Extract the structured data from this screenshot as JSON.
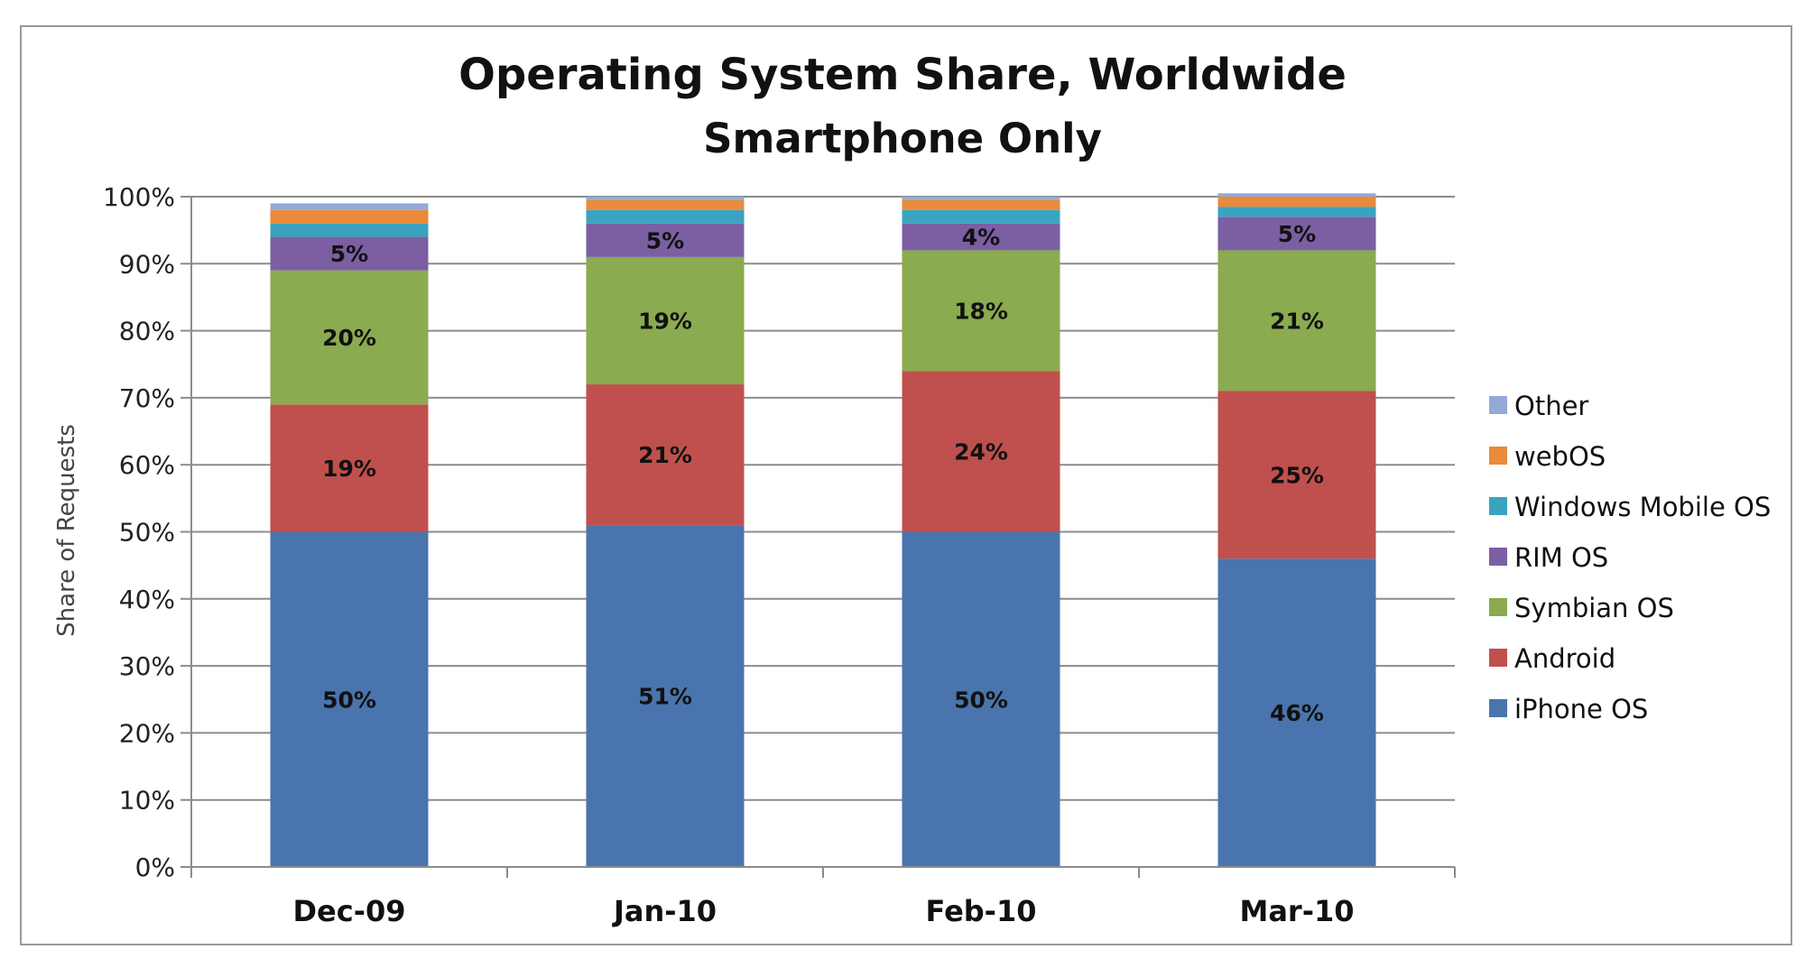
{
  "chart_data": {
    "type": "bar",
    "stacked": true,
    "title": "Operating System Share, Worldwide",
    "subtitle": "Smartphone Only",
    "ylabel": "Share of Requests",
    "xlabel": "",
    "ylim": [
      0,
      100
    ],
    "yticks": [
      "0%",
      "10%",
      "20%",
      "30%",
      "40%",
      "50%",
      "60%",
      "70%",
      "80%",
      "90%",
      "100%"
    ],
    "grid": true,
    "legend_position": "right",
    "categories": [
      "Dec-09",
      "Jan-10",
      "Feb-10",
      "Mar-10"
    ],
    "series": [
      {
        "name": "iPhone OS",
        "color": "#4a74ad",
        "values": [
          50,
          51,
          50,
          46
        ],
        "labels": [
          "50%",
          "51%",
          "50%",
          "46%"
        ]
      },
      {
        "name": "Android",
        "color": "#c0504d",
        "values": [
          19,
          21,
          24,
          25
        ],
        "labels": [
          "19%",
          "21%",
          "24%",
          "25%"
        ]
      },
      {
        "name": "Symbian OS",
        "color": "#8aab4f",
        "values": [
          20,
          19,
          18,
          21
        ],
        "labels": [
          "20%",
          "19%",
          "18%",
          "21%"
        ]
      },
      {
        "name": "RIM OS",
        "color": "#7b5fa2",
        "values": [
          5,
          5,
          4,
          5
        ],
        "labels": [
          "5%",
          "5%",
          "4%",
          "5%"
        ]
      },
      {
        "name": "Windows Mobile OS",
        "color": "#3aa3bf",
        "values": [
          2,
          2,
          2,
          1.5
        ],
        "labels": [
          "",
          "",
          "",
          ""
        ]
      },
      {
        "name": "webOS",
        "color": "#e98b3a",
        "values": [
          2,
          1.5,
          1.5,
          1.5
        ],
        "labels": [
          "",
          "",
          "",
          ""
        ]
      },
      {
        "name": "Other",
        "color": "#94a9d8",
        "values": [
          1,
          0.5,
          0.5,
          0.5
        ],
        "labels": [
          "",
          "",
          "",
          ""
        ]
      }
    ]
  }
}
